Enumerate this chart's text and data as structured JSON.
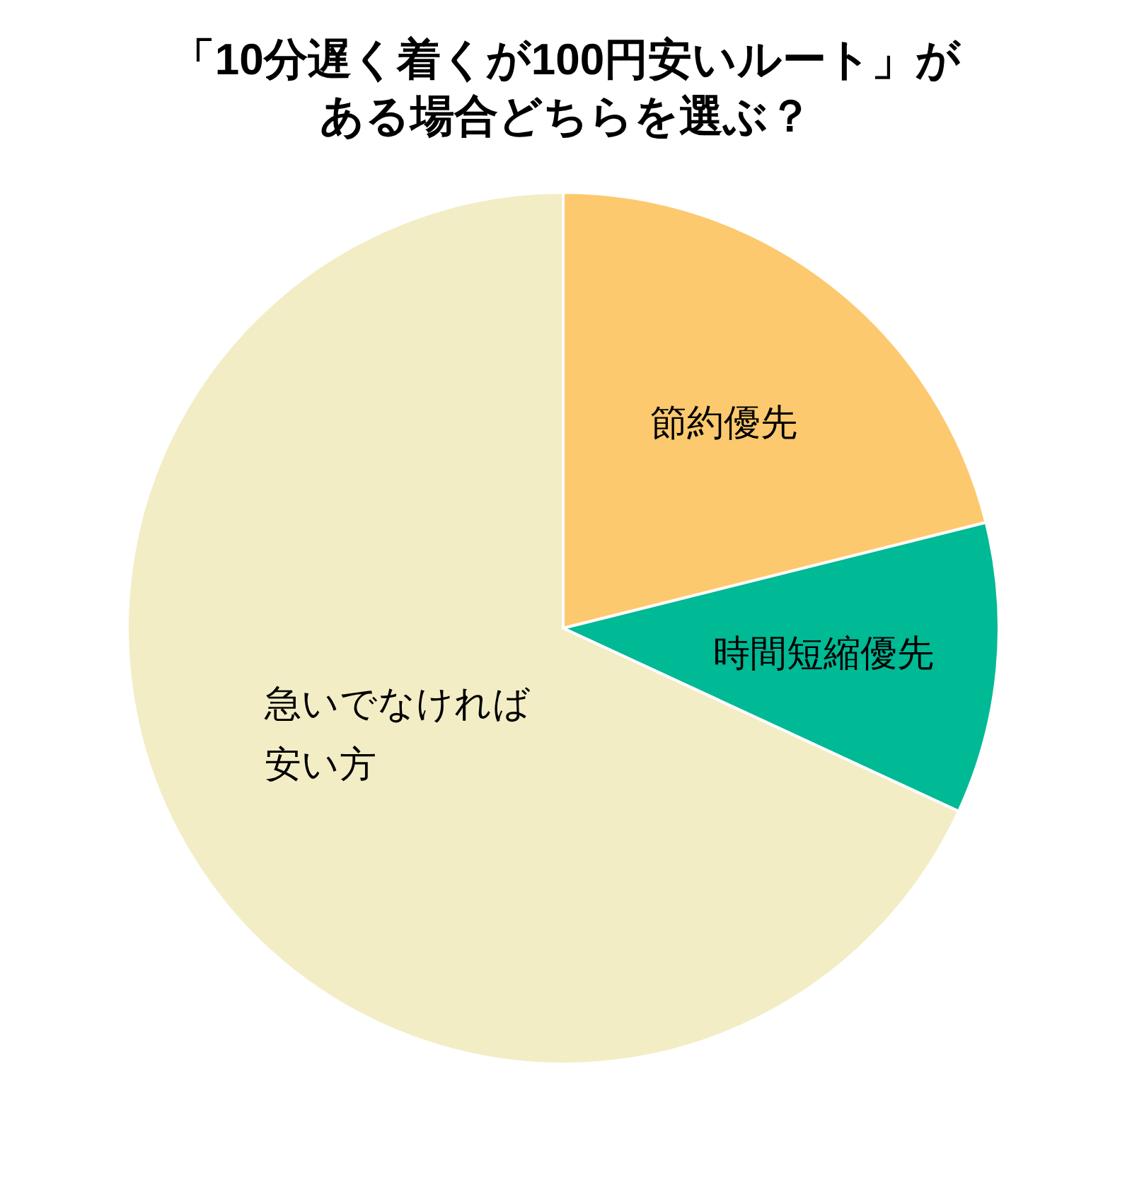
{
  "chart_data": {
    "type": "pie",
    "title": "「10分遅く着くが100円安いルート」がある場合どちらを選ぶ？",
    "categories": [
      "節約優先",
      "時間短縮優先",
      "急いでなければ安い方"
    ],
    "values": [
      21.1,
      10.8,
      68.1
    ],
    "colors": [
      "#fdc96e",
      "#00b995",
      "#f2edc5"
    ]
  }
}
